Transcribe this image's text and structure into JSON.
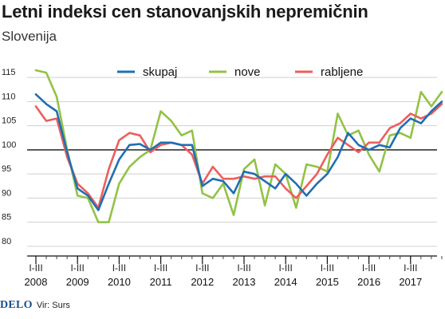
{
  "colors": {
    "skupaj": "#1f6fb2",
    "nove": "#93c245",
    "rabljene": "#ec5e5e",
    "grid": "#cfcfcf",
    "baseline": "#111111"
  },
  "chart_data": {
    "type": "line",
    "title": "Letni indeksi cen stanovanjskih nepremičnin",
    "subtitle": "Slovenija",
    "ylim": [
      78,
      118
    ],
    "yticks": [
      80,
      85,
      90,
      95,
      100,
      105,
      110,
      115
    ],
    "grid": "horizontal",
    "baseline": 100,
    "legend_position": "top",
    "quarter_label": "I-III",
    "years": [
      "2008",
      "2009",
      "2010",
      "2011",
      "2012",
      "2013",
      "2014",
      "2015",
      "2016",
      "2017"
    ],
    "x": [
      "2008 Q1",
      "2008 Q2",
      "2008 Q3",
      "2008 Q4",
      "2009 Q1",
      "2009 Q2",
      "2009 Q3",
      "2009 Q4",
      "2010 Q1",
      "2010 Q2",
      "2010 Q3",
      "2010 Q4",
      "2011 Q1",
      "2011 Q2",
      "2011 Q3",
      "2011 Q4",
      "2012 Q1",
      "2012 Q2",
      "2012 Q3",
      "2012 Q4",
      "2013 Q1",
      "2013 Q2",
      "2013 Q3",
      "2013 Q4",
      "2014 Q1",
      "2014 Q2",
      "2014 Q3",
      "2014 Q4",
      "2015 Q1",
      "2015 Q2",
      "2015 Q3",
      "2015 Q4",
      "2016 Q1",
      "2016 Q2",
      "2016 Q3",
      "2016 Q4",
      "2017 Q1",
      "2017 Q2",
      "2017 Q3",
      "2017 Q4"
    ],
    "series": [
      {
        "name": "skupaj",
        "color": "#1f6fb2",
        "values": [
          111.5,
          109.5,
          108.0,
          99.5,
          92.0,
          90.5,
          87.5,
          93.0,
          98.0,
          101.0,
          101.2,
          100.0,
          101.5,
          101.5,
          101.0,
          101.0,
          92.5,
          94.0,
          93.5,
          91.0,
          95.5,
          95.0,
          93.5,
          92.0,
          95.0,
          93.0,
          90.5,
          93.0,
          95.0,
          98.5,
          103.5,
          101.0,
          100.0,
          101.0,
          100.5,
          104.5,
          106.5,
          105.5,
          108.0,
          110.0
        ]
      },
      {
        "name": "nove",
        "color": "#93c245",
        "values": [
          116.5,
          116.0,
          111.0,
          100.0,
          90.5,
          90.0,
          85.0,
          85.0,
          93.0,
          96.5,
          98.5,
          100.0,
          108.0,
          106.0,
          103.0,
          104.0,
          91.0,
          90.0,
          93.0,
          86.5,
          96.0,
          98.0,
          88.5,
          97.0,
          95.0,
          88.0,
          97.0,
          96.5,
          95.5,
          107.5,
          103.0,
          104.0,
          99.0,
          95.5,
          103.0,
          103.5,
          102.5,
          112.0,
          109.0,
          112.0
        ]
      },
      {
        "name": "rabljene",
        "color": "#ec5e5e",
        "values": [
          109.0,
          106.0,
          106.5,
          98.5,
          93.0,
          91.0,
          88.0,
          96.0,
          102.0,
          103.5,
          103.0,
          99.5,
          101.0,
          101.5,
          101.0,
          99.0,
          93.0,
          96.5,
          94.0,
          94.0,
          94.5,
          94.0,
          94.5,
          94.5,
          92.0,
          90.0,
          92.5,
          95.0,
          99.0,
          102.5,
          101.0,
          99.5,
          101.5,
          101.5,
          104.5,
          105.5,
          107.5,
          106.5,
          107.5,
          109.5
        ]
      }
    ]
  },
  "footer": {
    "logo": "DELO",
    "source": "Vir: Surs"
  }
}
